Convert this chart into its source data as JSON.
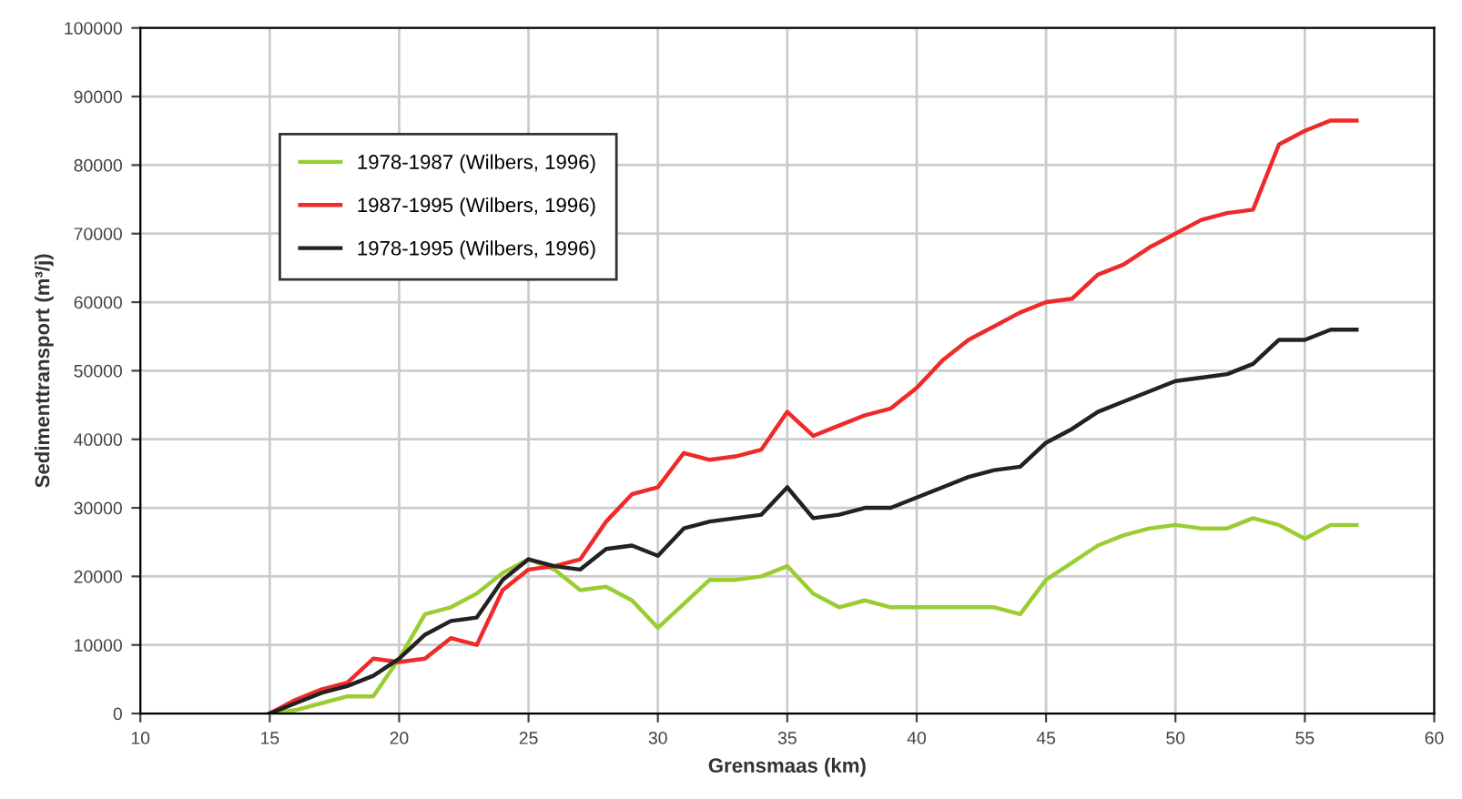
{
  "chart_data": {
    "type": "line",
    "xlabel": "Grensmaas (km)",
    "ylabel": "Sedimenttransport (m³/j)",
    "x": [
      15,
      16,
      17,
      18,
      19,
      20,
      21,
      22,
      23,
      24,
      25,
      26,
      27,
      28,
      29,
      30,
      31,
      32,
      33,
      34,
      35,
      36,
      37,
      38,
      39,
      40,
      41,
      42,
      43,
      44,
      45,
      46,
      47,
      48,
      49,
      50,
      51,
      52,
      53,
      54,
      55,
      56,
      57
    ],
    "series": [
      {
        "name": "1978-1987 (Wilbers, 1996)",
        "color": "#9acd32",
        "values": [
          0,
          500,
          1500,
          2500,
          2500,
          8000,
          14500,
          15500,
          17500,
          20500,
          22500,
          21000,
          18000,
          18500,
          16500,
          12500,
          16000,
          19500,
          19500,
          20000,
          21500,
          17500,
          15500,
          16500,
          15500,
          15500,
          15500,
          15500,
          15500,
          14500,
          19500,
          22000,
          24500,
          26000,
          27000,
          27500,
          27000,
          27000,
          28500,
          27500,
          25500,
          27500,
          27500
        ]
      },
      {
        "name": "1987-1995 (Wilbers, 1996)",
        "color": "#ee2a2a",
        "values": [
          0,
          2000,
          3500,
          4500,
          8000,
          7500,
          8000,
          11000,
          10000,
          18000,
          21000,
          21500,
          22500,
          28000,
          32000,
          33000,
          38000,
          37000,
          37500,
          38500,
          44000,
          40500,
          42000,
          43500,
          44500,
          47500,
          51500,
          54500,
          56500,
          58500,
          60000,
          60500,
          64000,
          65500,
          68000,
          70000,
          72000,
          73000,
          73500,
          83000,
          85000,
          86500,
          86500
        ]
      },
      {
        "name": "1978-1995 (Wilbers, 1996)",
        "color": "#222222",
        "values": [
          0,
          1500,
          3000,
          4000,
          5500,
          8000,
          11500,
          13500,
          14000,
          19500,
          22500,
          21500,
          21000,
          24000,
          24500,
          23000,
          27000,
          28000,
          28500,
          29000,
          33000,
          28500,
          29000,
          30000,
          30000,
          31500,
          33000,
          34500,
          35500,
          36000,
          39500,
          41500,
          44000,
          45500,
          47000,
          48500,
          49000,
          49500,
          51000,
          54500,
          54500,
          56000,
          56000
        ]
      }
    ],
    "xlim": [
      10,
      60
    ],
    "xticks": [
      10,
      15,
      20,
      25,
      30,
      35,
      40,
      45,
      50,
      55,
      60
    ],
    "ylim": [
      0,
      100000
    ],
    "yticks": [
      0,
      10000,
      20000,
      30000,
      40000,
      50000,
      60000,
      70000,
      80000,
      90000,
      100000
    ],
    "grid": true,
    "legend": "top left",
    "marker": "none",
    "line_style": "solid"
  }
}
